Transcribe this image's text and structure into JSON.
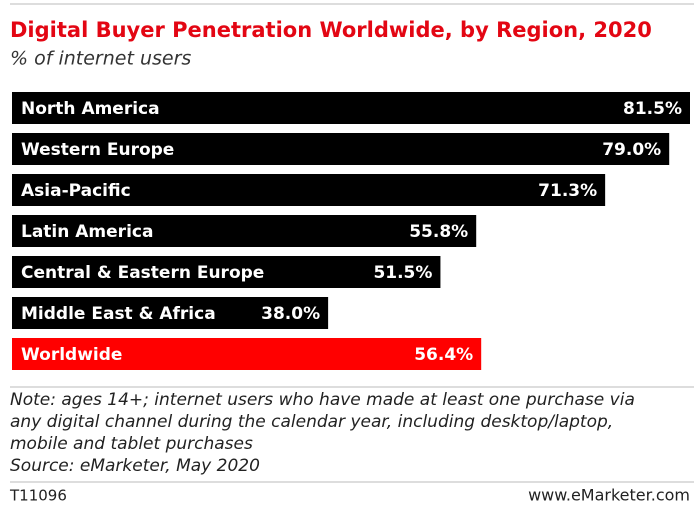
{
  "chart_data": {
    "type": "hbar",
    "title": "Digital Buyer Penetration Worldwide, by Region, 2020",
    "subtitle": "% of internet users",
    "categories": [
      "North America",
      "Western Europe",
      "Asia-Pacific",
      "Latin America",
      "Central & Eastern Europe",
      "Middle East & Africa",
      "Worldwide"
    ],
    "values": [
      81.5,
      79.0,
      71.3,
      55.8,
      51.5,
      38.0,
      56.4
    ],
    "value_labels": [
      "81.5%",
      "79.0%",
      "71.3%",
      "55.8%",
      "51.5%",
      "38.0%",
      "56.4%"
    ],
    "colors": [
      "#000000",
      "#000000",
      "#000000",
      "#000000",
      "#000000",
      "#000000",
      "#ff0000"
    ],
    "note": [
      "Note: ages 14+; internet users who have made at least one purchase via",
      "any digital channel during the calendar year, including desktop/laptop,",
      "mobile and tablet purchases",
      "Source: eMarketer, May 2020"
    ],
    "id": "T11096",
    "brand": "www.eMarketer.com"
  }
}
